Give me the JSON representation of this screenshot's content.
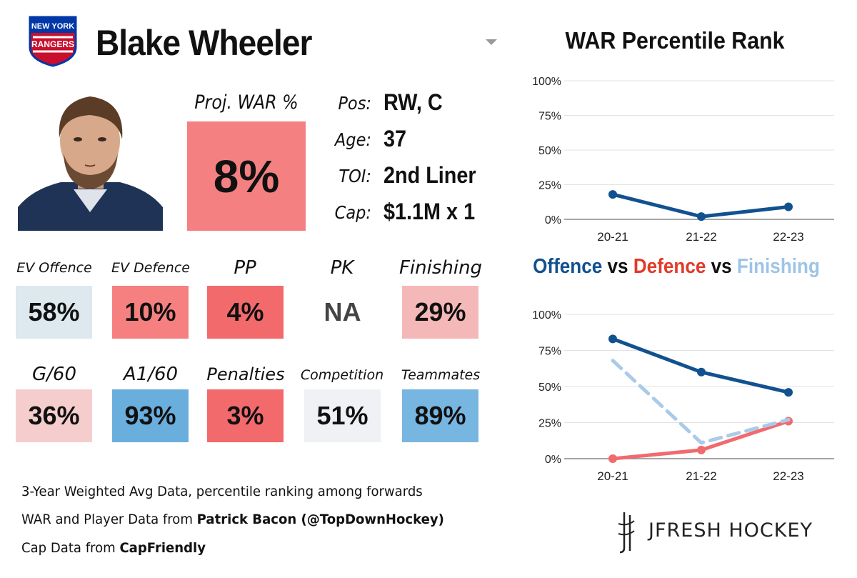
{
  "player": {
    "name": "Blake Wheeler",
    "team_logo_text": [
      "NEW YORK",
      "RANGERS"
    ],
    "proj_war_label": "Proj. WAR %",
    "proj_war_value": "8%",
    "info": [
      {
        "label": "Pos:",
        "value": "RW, C"
      },
      {
        "label": "Age:",
        "value": "37"
      },
      {
        "label": "TOI:",
        "value": "2nd Liner"
      },
      {
        "label": "Cap:",
        "value": "$1.1M x 1"
      }
    ]
  },
  "stats_row1": [
    {
      "label": "EV Offence",
      "value": "58%",
      "color": "#dde8ef"
    },
    {
      "label": "EV Defence",
      "value": "10%",
      "color": "#f68080"
    },
    {
      "label": "PP",
      "value": "4%",
      "color": "#f26a6c"
    },
    {
      "label": "PK",
      "value": "NA",
      "color": "#ffffff"
    },
    {
      "label": "Finishing",
      "value": "29%",
      "color": "#f5b8b8"
    }
  ],
  "stats_row2": [
    {
      "label": "G/60",
      "value": "36%",
      "color": "#f6cdcd"
    },
    {
      "label": "A1/60",
      "value": "93%",
      "color": "#6aaede"
    },
    {
      "label": "Penalties",
      "value": "3%",
      "color": "#f26a6c"
    },
    {
      "label": "Competition",
      "value": "51%",
      "color": "#eff1f4"
    },
    {
      "label": "Teammates",
      "value": "89%",
      "color": "#78b6e2"
    }
  ],
  "notes": {
    "line1": "3-Year Weighted Avg Data, percentile ranking among forwards",
    "line2_prefix": "WAR and Player Data from ",
    "line2_bold": "Patrick Bacon (@TopDownHockey)",
    "line3_prefix": "Cap Data from ",
    "line3_bold": "CapFriendly"
  },
  "brand": "JFRESH HOCKEY",
  "chart2_title": {
    "offence": "Offence",
    "vs1": " vs ",
    "defence": "Defence",
    "vs2": " vs ",
    "finishing": "Finishing"
  },
  "chart_data": [
    {
      "type": "line",
      "title": "WAR Percentile Rank",
      "categories": [
        "20-21",
        "21-22",
        "22-23"
      ],
      "series": [
        {
          "name": "WAR",
          "values": [
            18,
            2,
            9
          ],
          "color": "#12518f",
          "dash": false
        }
      ],
      "ylim": [
        0,
        100
      ],
      "yticks": [
        "0%",
        "25%",
        "50%",
        "75%",
        "100%"
      ],
      "grid": true
    },
    {
      "type": "line",
      "title": "Offence vs Defence vs Finishing",
      "categories": [
        "20-21",
        "21-22",
        "22-23"
      ],
      "series": [
        {
          "name": "Offence",
          "values": [
            83,
            60,
            46
          ],
          "color": "#12518f",
          "dash": false
        },
        {
          "name": "Defence",
          "values": [
            0,
            6,
            26
          ],
          "color": "#f06a6e",
          "dash": false
        },
        {
          "name": "Finishing",
          "values": [
            68,
            11,
            27
          ],
          "color": "#a9cbe9",
          "dash": true
        }
      ],
      "ylim": [
        0,
        100
      ],
      "yticks": [
        "0%",
        "25%",
        "50%",
        "75%",
        "100%"
      ],
      "grid": true
    }
  ]
}
